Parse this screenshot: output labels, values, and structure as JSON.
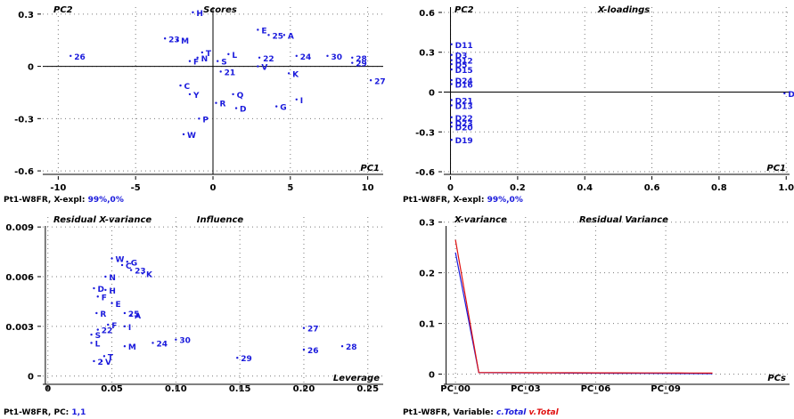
{
  "colors": {
    "points": "#1a1adc",
    "c_total": "#1a1adc",
    "v_total": "#e01010",
    "grid": "#7a7a7a",
    "axis": "#000000"
  },
  "chart_data": [
    {
      "type": "scatter",
      "title": "Scores",
      "ylabel": "PC2",
      "xlabel": "PC1",
      "xlim": [
        -11,
        11
      ],
      "ylim": [
        -0.62,
        0.34
      ],
      "xticks": [
        -10,
        -5,
        0,
        5,
        10
      ],
      "yticks": [
        -0.6,
        -0.3,
        0,
        0.3
      ],
      "xtick_labels": [
        "-10",
        "-5",
        "0",
        "5",
        "10"
      ],
      "ytick_labels": [
        "-0.6",
        "-0.3",
        "0",
        "0.3"
      ],
      "footer": {
        "prefix": "Pt1-W8FR, X-expl: ",
        "value": "99%,0%"
      },
      "points": [
        {
          "label": "H",
          "x": -1.3,
          "y": 0.31
        },
        {
          "label": "E",
          "x": 2.9,
          "y": 0.21
        },
        {
          "label": "25",
          "x": 3.6,
          "y": 0.18
        },
        {
          "label": "A",
          "x": 4.6,
          "y": 0.18
        },
        {
          "label": "23",
          "x": -3.1,
          "y": 0.16
        },
        {
          "label": "M",
          "x": -2.3,
          "y": 0.15
        },
        {
          "label": "26",
          "x": -9.2,
          "y": 0.06
        },
        {
          "label": "T",
          "x": -0.7,
          "y": 0.08
        },
        {
          "label": "L",
          "x": 1.0,
          "y": 0.07
        },
        {
          "label": "N",
          "x": -1.0,
          "y": 0.05
        },
        {
          "label": "F",
          "x": -1.5,
          "y": 0.03
        },
        {
          "label": "S",
          "x": 0.3,
          "y": 0.03
        },
        {
          "label": "22",
          "x": 3.0,
          "y": 0.05
        },
        {
          "label": "24",
          "x": 5.4,
          "y": 0.06
        },
        {
          "label": "30",
          "x": 7.4,
          "y": 0.06
        },
        {
          "label": "28",
          "x": 9.0,
          "y": 0.05
        },
        {
          "label": "29",
          "x": 9.0,
          "y": 0.02
        },
        {
          "label": "21",
          "x": 0.5,
          "y": -0.03
        },
        {
          "label": "V",
          "x": 2.9,
          "y": 0.0
        },
        {
          "label": "K",
          "x": 4.9,
          "y": -0.04
        },
        {
          "label": "27",
          "x": 10.2,
          "y": -0.08
        },
        {
          "label": "C",
          "x": -2.1,
          "y": -0.11
        },
        {
          "label": "Y",
          "x": -1.5,
          "y": -0.16
        },
        {
          "label": "Q",
          "x": 1.3,
          "y": -0.16
        },
        {
          "label": "I",
          "x": 5.4,
          "y": -0.19
        },
        {
          "label": "R",
          "x": 0.2,
          "y": -0.21
        },
        {
          "label": "D",
          "x": 1.5,
          "y": -0.24
        },
        {
          "label": "G",
          "x": 4.1,
          "y": -0.23
        },
        {
          "label": "P",
          "x": -0.9,
          "y": -0.3
        },
        {
          "label": "W",
          "x": -1.9,
          "y": -0.39
        }
      ]
    },
    {
      "type": "scatter",
      "title": "X-loadings",
      "ylabel": "PC2",
      "xlabel": "PC1",
      "xlim": [
        -0.02,
        1.01
      ],
      "ylim": [
        -0.62,
        0.64
      ],
      "xticks": [
        0,
        0.2,
        0.4,
        0.6,
        0.8,
        1.0
      ],
      "yticks": [
        -0.6,
        -0.3,
        0,
        0.3,
        0.6
      ],
      "xtick_labels": [
        "0",
        "0.2",
        "0.4",
        "0.6",
        "0.8",
        "1.0"
      ],
      "ytick_labels": [
        "-0.6",
        "-0.3",
        "0",
        "0.3",
        "0.6"
      ],
      "footer": {
        "prefix": "Pt1-W8FR, X-expl: ",
        "value": "99%,0%"
      },
      "points": [
        {
          "label": "D11",
          "x": 0.003,
          "y": 0.36
        },
        {
          "label": "D3",
          "x": 0.003,
          "y": 0.28
        },
        {
          "label": "D12",
          "x": 0.003,
          "y": 0.24
        },
        {
          "label": "D5",
          "x": 0.003,
          "y": 0.21
        },
        {
          "label": "D15",
          "x": 0.003,
          "y": 0.17
        },
        {
          "label": "D24",
          "x": 0.003,
          "y": 0.09
        },
        {
          "label": "D16",
          "x": 0.003,
          "y": 0.06
        },
        {
          "label": "D1",
          "x": 0.995,
          "y": -0.01
        },
        {
          "label": "D21",
          "x": 0.003,
          "y": -0.06
        },
        {
          "label": "D13",
          "x": 0.003,
          "y": -0.1
        },
        {
          "label": "D22",
          "x": 0.003,
          "y": -0.19
        },
        {
          "label": "D23",
          "x": 0.003,
          "y": -0.23
        },
        {
          "label": "D20",
          "x": 0.003,
          "y": -0.26
        },
        {
          "label": "D19",
          "x": 0.003,
          "y": -0.36
        }
      ]
    },
    {
      "type": "scatter",
      "title": "Influence",
      "ylabel": "Residual X-variance",
      "xlabel": "Leverage",
      "xlim": [
        -0.004,
        0.262
      ],
      "ylim": [
        -0.0005,
        0.0096
      ],
      "xticks": [
        0,
        0.05,
        0.1,
        0.15,
        0.2,
        0.25
      ],
      "yticks": [
        0,
        0.003,
        0.006,
        0.009
      ],
      "xtick_labels": [
        "0",
        "0.05",
        "0.10",
        "0.15",
        "0.20",
        "0.25"
      ],
      "ytick_labels": [
        "0",
        "0.003",
        "0.006",
        "0.009"
      ],
      "footer": {
        "prefix": "Pt1-W8FR, PC: ",
        "value": "1,1"
      },
      "points": [
        {
          "label": "W",
          "x": 0.05,
          "y": 0.0071
        },
        {
          "label": "G",
          "x": 0.062,
          "y": 0.0069
        },
        {
          "label": "C",
          "x": 0.058,
          "y": 0.0067
        },
        {
          "label": "23",
          "x": 0.065,
          "y": 0.0064
        },
        {
          "label": "K",
          "x": 0.074,
          "y": 0.0062
        },
        {
          "label": "N",
          "x": 0.045,
          "y": 0.006
        },
        {
          "label": "D",
          "x": 0.036,
          "y": 0.0053
        },
        {
          "label": "H",
          "x": 0.045,
          "y": 0.0052
        },
        {
          "label": "F",
          "x": 0.039,
          "y": 0.0048
        },
        {
          "label": "E",
          "x": 0.05,
          "y": 0.0044
        },
        {
          "label": "R",
          "x": 0.038,
          "y": 0.0038
        },
        {
          "label": "25",
          "x": 0.06,
          "y": 0.0038
        },
        {
          "label": "A",
          "x": 0.065,
          "y": 0.0037
        },
        {
          "label": "F",
          "x": 0.047,
          "y": 0.0031
        },
        {
          "label": "I",
          "x": 0.06,
          "y": 0.003
        },
        {
          "label": "22",
          "x": 0.039,
          "y": 0.0028
        },
        {
          "label": "S",
          "x": 0.034,
          "y": 0.0025
        },
        {
          "label": "30",
          "x": 0.1,
          "y": 0.0022
        },
        {
          "label": "24",
          "x": 0.082,
          "y": 0.002
        },
        {
          "label": "L",
          "x": 0.034,
          "y": 0.002
        },
        {
          "label": "M",
          "x": 0.06,
          "y": 0.0018
        },
        {
          "label": "27",
          "x": 0.2,
          "y": 0.0029
        },
        {
          "label": "28",
          "x": 0.23,
          "y": 0.0018
        },
        {
          "label": "26",
          "x": 0.2,
          "y": 0.0016
        },
        {
          "label": "29",
          "x": 0.148,
          "y": 0.0011
        },
        {
          "label": "T",
          "x": 0.044,
          "y": 0.0012
        },
        {
          "label": "2",
          "x": 0.036,
          "y": 0.0009
        },
        {
          "label": "V",
          "x": 0.042,
          "y": 0.0009
        }
      ]
    },
    {
      "type": "line",
      "title": "Residual Variance",
      "ylabel": "X-variance",
      "xlabel": "PCs",
      "xlim": [
        -0.5,
        14.3
      ],
      "ylim": [
        -0.02,
        0.31
      ],
      "xticks": [
        0,
        3,
        6,
        9
      ],
      "yticks": [
        0,
        0.1,
        0.2,
        0.3
      ],
      "xtick_labels": [
        "PC_00",
        "PC_03",
        "PC_06",
        "PC_09"
      ],
      "ytick_labels": [
        "0",
        "0.1",
        "0.2",
        "0.3"
      ],
      "footer": {
        "prefix": "Pt1-W8FR, Variable: ",
        "c_label": "c.Total",
        "v_label": "v.Total"
      },
      "x": [
        0,
        1,
        2,
        3,
        4,
        5,
        6,
        7,
        8,
        9,
        10,
        11
      ],
      "series": [
        {
          "name": "c.Total",
          "values": [
            0.24,
            0.003,
            0.0028,
            0.0026,
            0.0024,
            0.0022,
            0.002,
            0.0018,
            0.0016,
            0.0014,
            0.0012,
            0.001
          ]
        },
        {
          "name": "v.Total",
          "values": [
            0.265,
            0.0032,
            0.0031,
            0.003,
            0.0029,
            0.0028,
            0.0027,
            0.0026,
            0.0025,
            0.0024,
            0.0023,
            0.0022
          ]
        }
      ]
    }
  ]
}
